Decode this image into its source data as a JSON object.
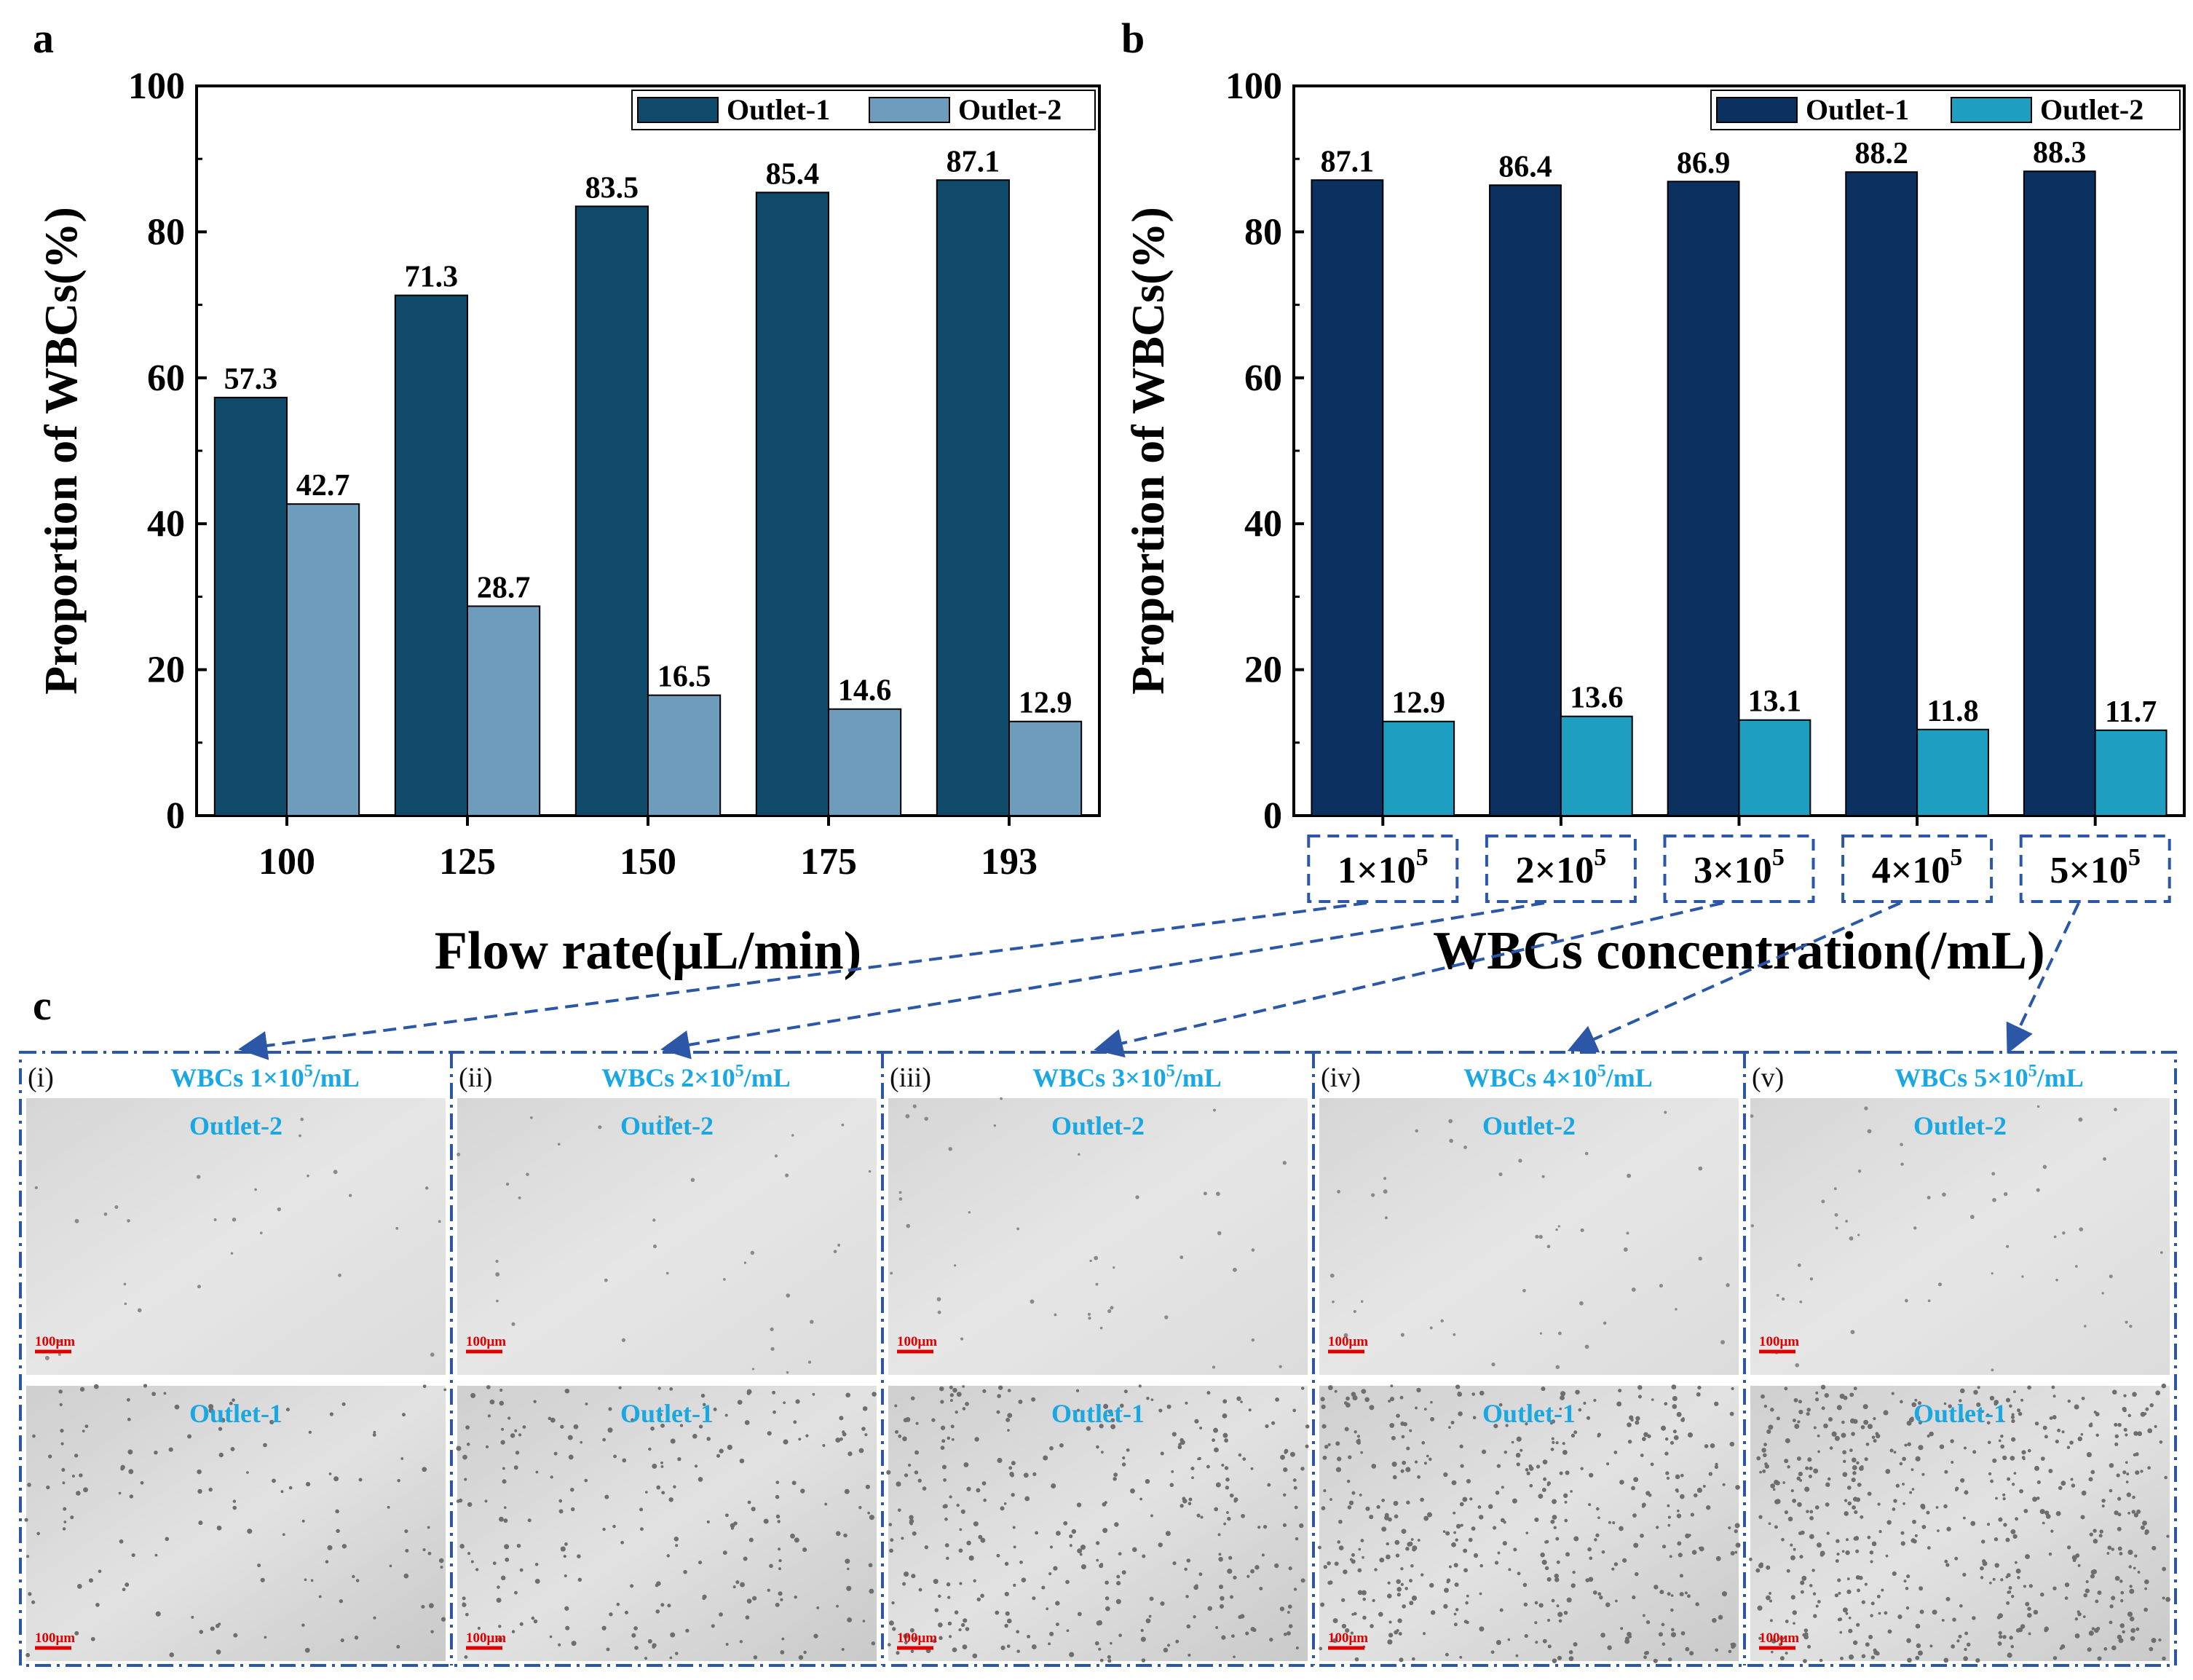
{
  "panels": {
    "a": "a",
    "b": "b",
    "c": "c"
  },
  "colors": {
    "a_outlet1": "#0f4a6b",
    "a_outlet2": "#6d9cbd",
    "b_outlet1": "#0a3160",
    "b_outlet2": "#1e9ec1",
    "dash_box": "#2c57a6",
    "image_title": "#1aa7e2",
    "scale_bar": "#e00000"
  },
  "chart_data": [
    {
      "id": "a",
      "type": "bar",
      "title": "",
      "xlabel": "Flow rate(μL/min)",
      "ylabel": "Proportion of WBCs(%)",
      "ylim": [
        0,
        100
      ],
      "yticks": [
        "0",
        "20",
        "40",
        "60",
        "80",
        "100"
      ],
      "categories": [
        "100",
        "125",
        "150",
        "175",
        "193"
      ],
      "legend_position": "top-right",
      "series": [
        {
          "name": "Outlet-1",
          "values": [
            57.3,
            71.3,
            83.5,
            85.4,
            87.1
          ],
          "labels": [
            "57.3",
            "71.3",
            "83.5",
            "85.4",
            "87.1"
          ]
        },
        {
          "name": "Outlet-2",
          "values": [
            42.7,
            28.7,
            16.5,
            14.6,
            12.9
          ],
          "labels": [
            "42.7",
            "28.7",
            "16.5",
            "14.6",
            "12.9"
          ]
        }
      ]
    },
    {
      "id": "b",
      "type": "bar",
      "title": "",
      "xlabel": "WBCs concentration(/mL)",
      "ylabel": "Proportion of WBCs(%)",
      "ylim": [
        0,
        100
      ],
      "yticks": [
        "0",
        "20",
        "40",
        "60",
        "80",
        "100"
      ],
      "categories": [
        {
          "mant": "1×10",
          "exp": "5"
        },
        {
          "mant": "2×10",
          "exp": "5"
        },
        {
          "mant": "3×10",
          "exp": "5"
        },
        {
          "mant": "4×10",
          "exp": "5"
        },
        {
          "mant": "5×10",
          "exp": "5"
        }
      ],
      "legend_position": "top-right",
      "series": [
        {
          "name": "Outlet-1",
          "values": [
            87.1,
            86.4,
            86.9,
            88.2,
            88.3
          ],
          "labels": [
            "87.1",
            "86.4",
            "86.9",
            "88.2",
            "88.3"
          ]
        },
        {
          "name": "Outlet-2",
          "values": [
            12.9,
            13.6,
            13.1,
            11.8,
            11.7
          ],
          "labels": [
            "12.9",
            "13.6",
            "13.1",
            "11.8",
            "11.7"
          ]
        }
      ]
    }
  ],
  "micrographs": {
    "top_label": "Outlet-2",
    "bottom_label": "Outlet-1",
    "scale_label": "100μm",
    "panels": [
      {
        "roman": "(i)",
        "title_pre": "WBCs 1×10",
        "title_exp": "5",
        "title_post": "/mL"
      },
      {
        "roman": "(ii)",
        "title_pre": "WBCs 2×10",
        "title_exp": "5",
        "title_post": "/mL"
      },
      {
        "roman": "(iii)",
        "title_pre": "WBCs 3×10",
        "title_exp": "5",
        "title_post": "/mL"
      },
      {
        "roman": "(iv)",
        "title_pre": "WBCs 4×10",
        "title_exp": "5",
        "title_post": "/mL"
      },
      {
        "roman": "(v)",
        "title_pre": "WBCs 5×10",
        "title_exp": "5",
        "title_post": "/mL"
      }
    ]
  }
}
